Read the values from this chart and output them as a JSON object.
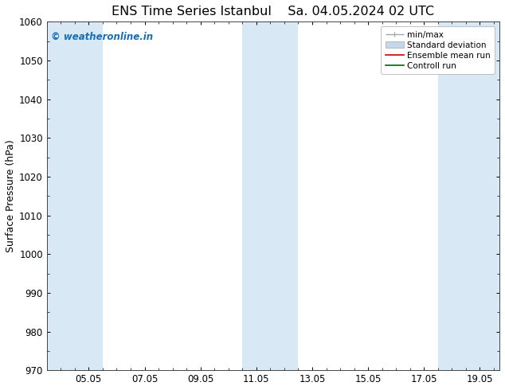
{
  "title_left": "ENS Time Series Istanbul",
  "title_right": "Sa. 04.05.2024 02 UTC",
  "ylabel": "Surface Pressure (hPa)",
  "ylim": [
    970,
    1060
  ],
  "yticks": [
    970,
    980,
    990,
    1000,
    1010,
    1020,
    1030,
    1040,
    1050,
    1060
  ],
  "xtick_labels": [
    "05.05",
    "07.05",
    "09.05",
    "11.05",
    "13.05",
    "15.05",
    "17.05",
    "19.05"
  ],
  "background_color": "#ffffff",
  "plot_bg_color": "#ffffff",
  "shade_color": "#d8e9f5",
  "watermark_text": "© weatheronline.in",
  "watermark_color": "#1a6eb5",
  "legend_minmax_color": "#a0a8b0",
  "legend_std_color": "#c5d8ea",
  "legend_ens_color": "#cc0000",
  "legend_ctrl_color": "#006600",
  "title_fontsize": 11.5,
  "ylabel_fontsize": 9,
  "tick_fontsize": 8.5,
  "watermark_fontsize": 8.5,
  "legend_fontsize": 7.5
}
